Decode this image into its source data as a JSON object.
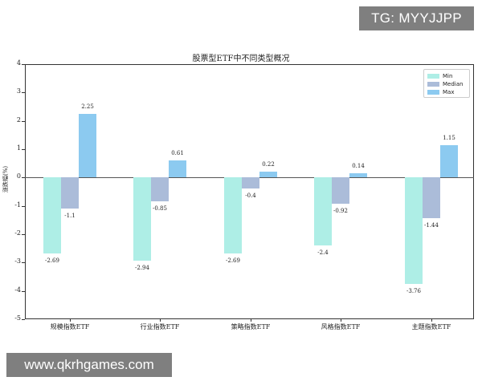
{
  "watermarks": {
    "top": "TG: MYYJJPP",
    "bottom": "www.qkrhgames.com"
  },
  "chart_data": {
    "type": "bar",
    "title": "股票型ETF中不同类型概况",
    "xlabel": "",
    "ylabel": "涨跌幅(%)",
    "ylim": [
      -5,
      4
    ],
    "yticks": [
      4,
      3,
      2,
      1,
      0,
      -1,
      -2,
      -3,
      -4,
      -5
    ],
    "grid": false,
    "legend_position": "upper right",
    "categories": [
      "规模指数ETF",
      "行业指数ETF",
      "策略指数ETF",
      "风格指数ETF",
      "主题指数ETF"
    ],
    "series": [
      {
        "name": "Min",
        "color": "#aeeee6",
        "values": [
          -2.69,
          -2.94,
          -2.69,
          -2.4,
          -3.76
        ]
      },
      {
        "name": "Median",
        "color": "#abbcd9",
        "values": [
          -1.1,
          -0.85,
          -0.4,
          -0.92,
          -1.44
        ]
      },
      {
        "name": "Max",
        "color": "#8ccaf0",
        "values": [
          2.25,
          0.61,
          0.22,
          0.14,
          1.15
        ]
      }
    ]
  }
}
